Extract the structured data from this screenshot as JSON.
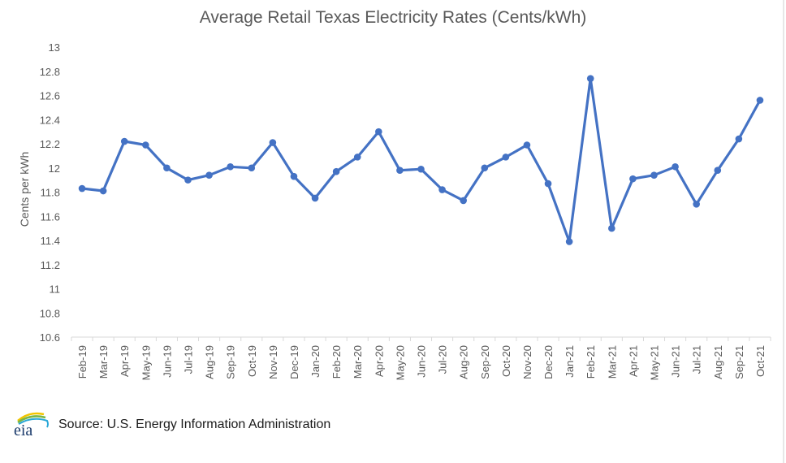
{
  "chart_data": {
    "type": "line",
    "title": "Average Retail Texas Electricity Rates (Cents/kWh)",
    "xlabel": "",
    "ylabel": "Cents per kWh",
    "ylim": [
      10.6,
      13
    ],
    "yticks": [
      "13",
      "12.8",
      "12.6",
      "12.4",
      "12.2",
      "12",
      "11.8",
      "11.6",
      "11.4",
      "11.2",
      "11",
      "10.8",
      "10.6"
    ],
    "ytick_values": [
      13,
      12.8,
      12.6,
      12.4,
      12.2,
      12,
      11.8,
      11.6,
      11.4,
      11.2,
      11,
      10.8,
      10.6
    ],
    "grid": false,
    "legend": "none",
    "categories": [
      "Feb-19",
      "Mar-19",
      "Apr-19",
      "May-19",
      "Jun-19",
      "Jul-19",
      "Aug-19",
      "Sep-19",
      "Oct-19",
      "Nov-19",
      "Dec-19",
      "Jan-20",
      "Feb-20",
      "Mar-20",
      "Apr-20",
      "May-20",
      "Jun-20",
      "Jul-20",
      "Aug-20",
      "Sep-20",
      "Oct-20",
      "Nov-20",
      "Dec-20",
      "Jan-21",
      "Feb-21",
      "Mar-21",
      "Apr-21",
      "May-21",
      "Jun-21",
      "Jul-21",
      "Aug-21",
      "Sep-21",
      "Oct-21"
    ],
    "series": [
      {
        "name": "Average Retail Texas Electricity Rates",
        "color": "#4472c4",
        "values": [
          11.83,
          11.81,
          12.22,
          12.19,
          12.0,
          11.9,
          11.94,
          12.01,
          12.0,
          12.21,
          11.93,
          11.75,
          11.97,
          12.09,
          12.3,
          11.98,
          11.99,
          11.82,
          11.73,
          12.0,
          12.09,
          12.19,
          11.87,
          11.39,
          12.74,
          11.5,
          11.91,
          11.94,
          12.01,
          11.7,
          11.98,
          12.24,
          12.56
        ]
      }
    ]
  },
  "footer": {
    "logo_text": "eia",
    "source": "Source: U.S. Energy Information Administration"
  },
  "colors": {
    "line": "#4472c4",
    "axis": "#d9d9d9",
    "text": "#595959"
  }
}
